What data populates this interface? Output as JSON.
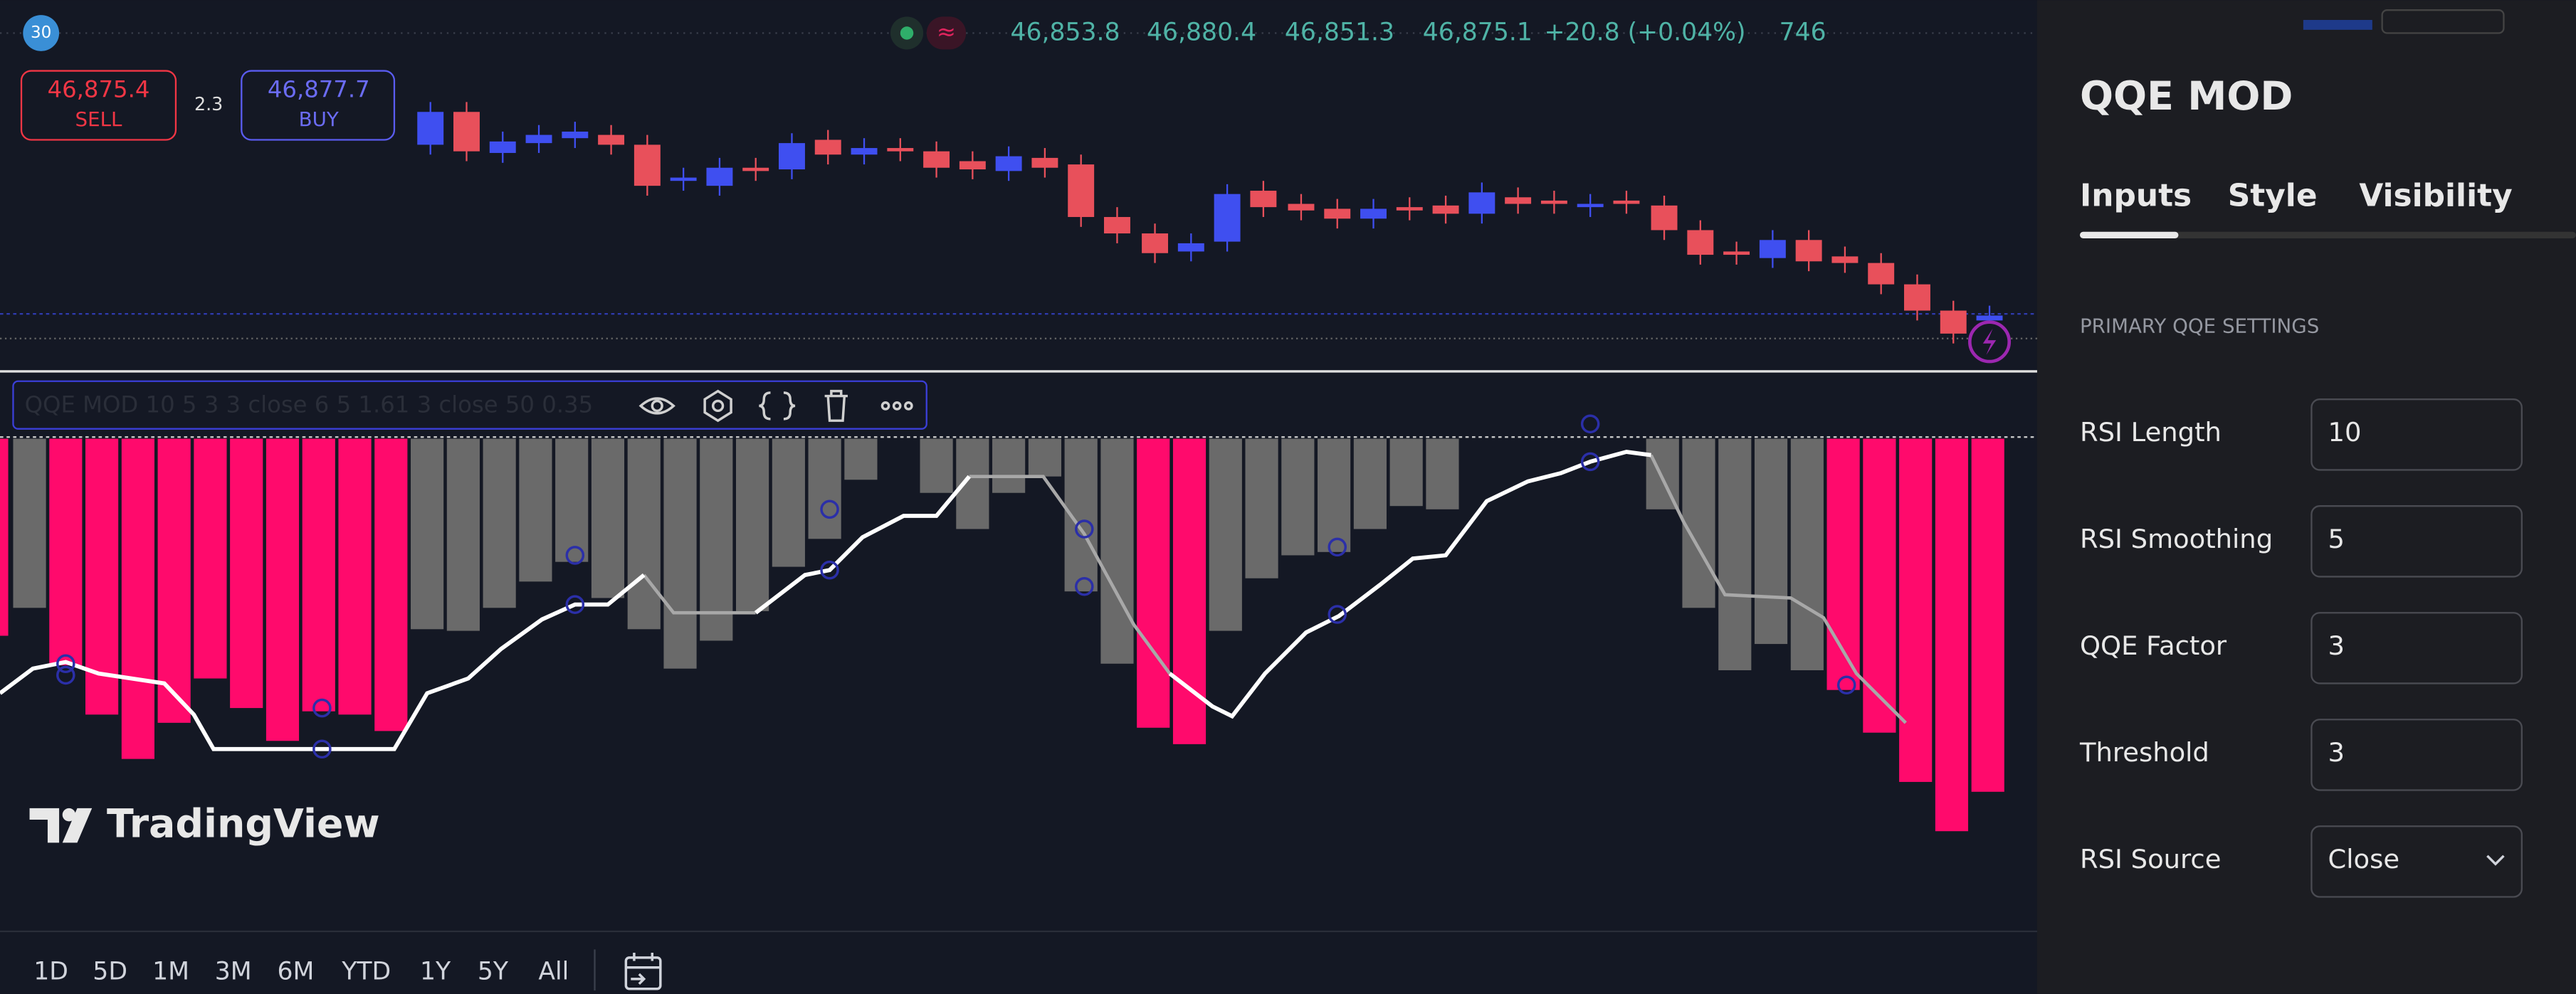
{
  "header": {
    "badge": "30",
    "ohlc": [
      "46,853.8",
      "46,880.4",
      "46,851.3",
      "46,875.1"
    ],
    "change": "+20.8 (+0.04%)",
    "volume": "746"
  },
  "trade": {
    "sell_price": "46,875.4",
    "sell": "SELL",
    "spread": "2.3",
    "buy_price": "46,877.7",
    "buy": "BUY"
  },
  "indicator_legend": "QQE MOD 10 5 3 3 close 6 5 1.61 3 close 50 0.35",
  "logo": "TradingView",
  "ranges": [
    "1D",
    "5D",
    "1M",
    "3M",
    "6M",
    "YTD",
    "1Y",
    "5Y",
    "All"
  ],
  "panel": {
    "title": "QQE MOD",
    "tabs": [
      "Inputs",
      "Style",
      "Visibility"
    ],
    "section": "PRIMARY QQE SETTINGS",
    "fields": [
      {
        "label": "RSI Length",
        "value": "10"
      },
      {
        "label": "RSI Smoothing",
        "value": "5"
      },
      {
        "label": "QQE Factor",
        "value": "3"
      },
      {
        "label": "Threshold",
        "value": "3"
      },
      {
        "label": "RSI Source",
        "value": "Close"
      }
    ]
  }
}
